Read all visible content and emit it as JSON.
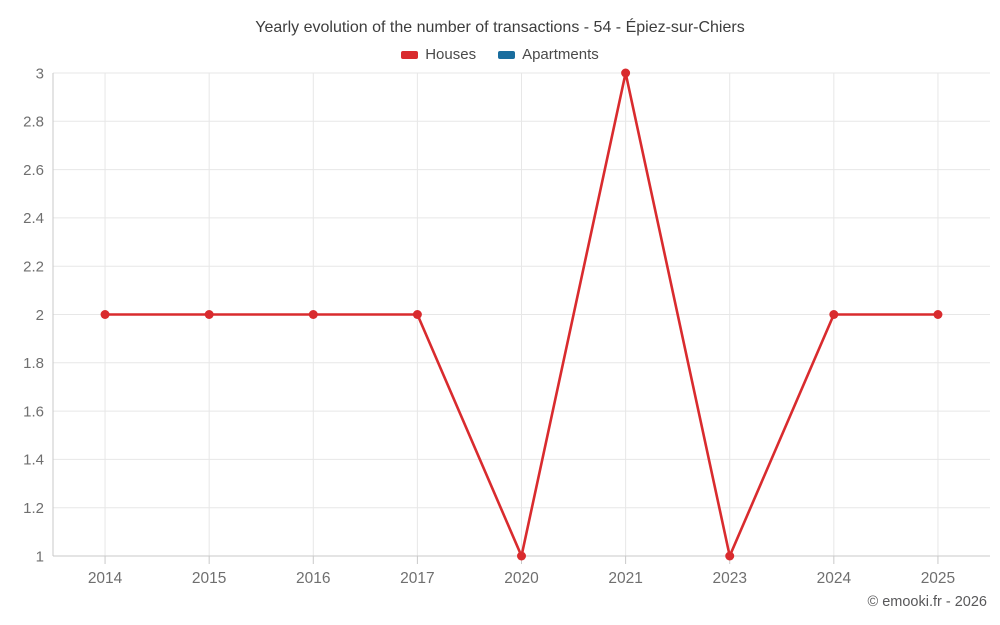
{
  "title": "Yearly evolution of the number of transactions - 54 - Épiez-sur-Chiers",
  "legend": [
    {
      "label": "Houses",
      "color": "#d92b2e"
    },
    {
      "label": "Apartments",
      "color": "#1a6d9e"
    }
  ],
  "footer": {
    "copyright": "© emooki.fr - 2026"
  },
  "chart_data": {
    "type": "line",
    "title": "Yearly evolution of the number of transactions - 54 - Épiez-sur-Chiers",
    "categories": [
      "2014",
      "2015",
      "2016",
      "2017",
      "2020",
      "2021",
      "2023",
      "2024",
      "2025"
    ],
    "series": [
      {
        "name": "Houses",
        "color": "#d92b2e",
        "values": [
          2,
          2,
          2,
          2,
          1,
          3,
          1,
          2,
          2
        ]
      },
      {
        "name": "Apartments",
        "color": "#1a6d9e",
        "values": [
          null,
          null,
          null,
          null,
          null,
          null,
          null,
          null,
          null
        ]
      }
    ],
    "xlabel": "",
    "ylabel": "",
    "ylim": [
      1,
      3
    ],
    "yticks": [
      1,
      1.2,
      1.4,
      1.6,
      1.8,
      2,
      2.2,
      2.4,
      2.6,
      2.8,
      3
    ],
    "grid": true,
    "legend_position": "top"
  }
}
